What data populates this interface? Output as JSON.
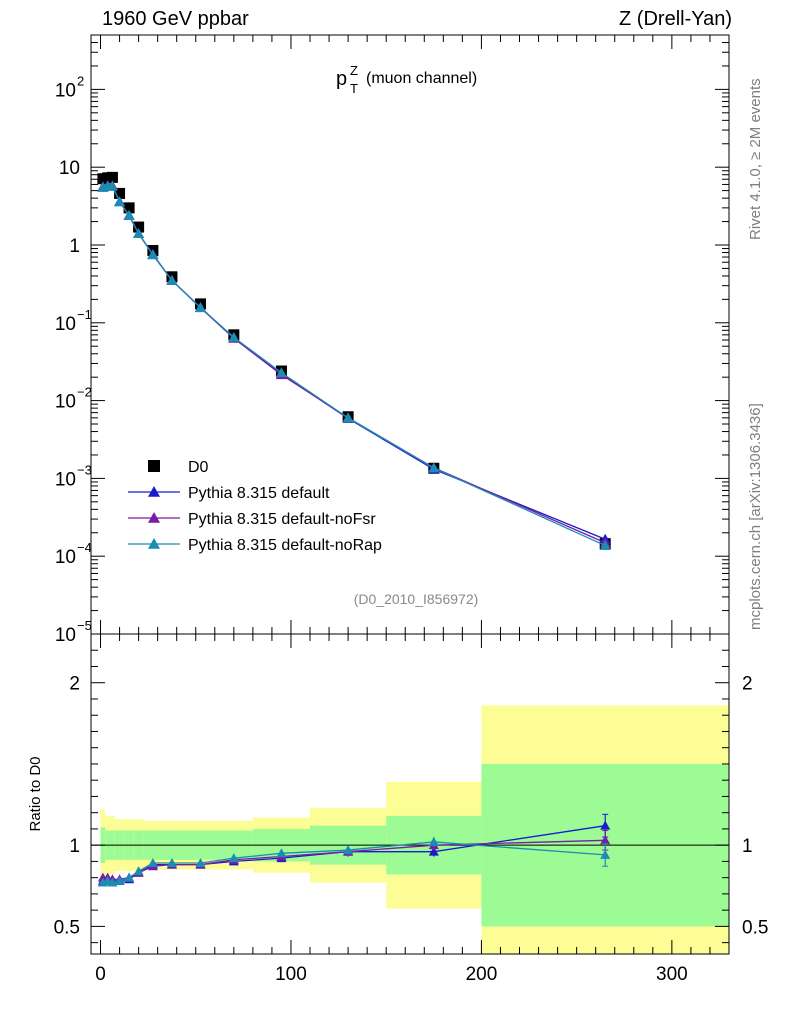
{
  "header": {
    "left": "1960 GeV ppbar",
    "right": "Z (Drell-Yan)"
  },
  "side_labels": {
    "rivet": "Rivet 4.1.0, ≥ 2M events",
    "mcplots": "mcplots.cern.ch [arXiv:1306.3436]"
  },
  "chart_data": [
    {
      "type": "scatter",
      "panel": "main",
      "title": "p_T^Z (muon channel)",
      "title_main": "p",
      "title_sub": "T",
      "title_sup": "Z",
      "title_rest": "(muon channel)",
      "analysis_tag": "(D0_2010_I856972)",
      "xlim": [
        -5,
        330
      ],
      "ylim_log": [
        1e-05,
        500
      ],
      "yscale": "log",
      "y_ticks": [
        {
          "value": 100,
          "base": "10",
          "exp": "2"
        },
        {
          "value": 10,
          "base": "10",
          "exp": ""
        },
        {
          "value": 1,
          "base": "1",
          "exp": ""
        },
        {
          "value": 0.1,
          "base": "10",
          "exp": "−1"
        },
        {
          "value": 0.01,
          "base": "10",
          "exp": "−2"
        },
        {
          "value": 0.001,
          "base": "10",
          "exp": "−3"
        },
        {
          "value": 0.0001,
          "base": "10",
          "exp": "−4"
        },
        {
          "value": 1e-05,
          "base": "10",
          "exp": "−5"
        }
      ],
      "x": [
        1.25,
        3.75,
        6.25,
        10,
        15,
        20,
        27.5,
        37.5,
        52.5,
        70,
        95,
        130,
        175,
        265
      ],
      "series": [
        {
          "name": "D0",
          "marker": "square",
          "color": "#000000",
          "values": [
            7.1,
            7.3,
            7.4,
            4.6,
            3.0,
            1.7,
            0.85,
            0.39,
            0.175,
            0.07,
            0.024,
            0.0062,
            0.00135,
            0.000145
          ]
        },
        {
          "name": "Pythia 8.315 default",
          "marker": "triangle",
          "color": "#1b1bcc",
          "values": [
            5.5,
            5.7,
            5.7,
            3.6,
            2.4,
            1.4,
            0.76,
            0.35,
            0.158,
            0.064,
            0.022,
            0.0059,
            0.00131,
            0.000165
          ]
        },
        {
          "name": "Pythia 8.315 default-noFsr",
          "marker": "triangle",
          "color": "#7a1ba8",
          "values": [
            5.6,
            5.8,
            5.8,
            3.6,
            2.4,
            1.4,
            0.75,
            0.35,
            0.156,
            0.063,
            0.0215,
            0.006,
            0.00137,
            0.000149
          ]
        },
        {
          "name": "Pythia 8.315 default-noRap",
          "marker": "triangle",
          "color": "#1b8db2",
          "values": [
            5.5,
            5.7,
            5.7,
            3.6,
            2.4,
            1.4,
            0.75,
            0.35,
            0.157,
            0.065,
            0.0228,
            0.006,
            0.00136,
            0.000137
          ]
        }
      ]
    },
    {
      "type": "line",
      "panel": "ratio",
      "ylabel": "Ratio to D0",
      "xlim": [
        -5,
        330
      ],
      "ylim": [
        0.33,
        2.3
      ],
      "y_ticks": [
        0.5,
        1,
        2
      ],
      "y_tick_labels": [
        "0.5",
        "1",
        "2"
      ],
      "x_ticks": [
        0,
        100,
        200,
        300
      ],
      "x_tick_labels": [
        "0",
        "100",
        "200",
        "300"
      ],
      "reference": 1,
      "bands": {
        "edges": [
          0,
          2.5,
          5,
          7.5,
          12.5,
          17.5,
          22.5,
          32.5,
          42.5,
          62.5,
          80,
          110,
          150,
          200,
          330
        ],
        "green_half": [
          0.11,
          0.09,
          0.09,
          0.09,
          0.09,
          0.09,
          0.09,
          0.09,
          0.09,
          0.09,
          0.1,
          0.12,
          0.18,
          0.5
        ],
        "yellow_half": [
          0.22,
          0.18,
          0.18,
          0.16,
          0.16,
          0.16,
          0.15,
          0.15,
          0.15,
          0.15,
          0.17,
          0.23,
          0.39,
          0.86
        ],
        "green_color": "#9cfb94",
        "yellow_color": "#fdfd95"
      },
      "x": [
        1.25,
        3.75,
        6.25,
        10,
        15,
        20,
        27.5,
        37.5,
        52.5,
        70,
        95,
        130,
        175,
        265
      ],
      "series": [
        {
          "name": "Pythia 8.315 default",
          "color": "#1b1bcc",
          "values": [
            0.78,
            0.79,
            0.78,
            0.78,
            0.79,
            0.83,
            0.88,
            0.88,
            0.88,
            0.9,
            0.92,
            0.96,
            0.96,
            1.12
          ],
          "err_last": 0.07
        },
        {
          "name": "Pythia 8.315 default-noFsr",
          "color": "#7a1ba8",
          "values": [
            0.8,
            0.8,
            0.79,
            0.79,
            0.8,
            0.83,
            0.87,
            0.88,
            0.88,
            0.91,
            0.93,
            0.96,
            1.0,
            1.03
          ],
          "err_last": 0.06
        },
        {
          "name": "Pythia 8.315 default-noRap",
          "color": "#1b8db2",
          "values": [
            0.77,
            0.78,
            0.77,
            0.78,
            0.8,
            0.84,
            0.89,
            0.89,
            0.89,
            0.92,
            0.95,
            0.97,
            1.02,
            0.94
          ],
          "err_last": 0.07
        }
      ]
    }
  ]
}
